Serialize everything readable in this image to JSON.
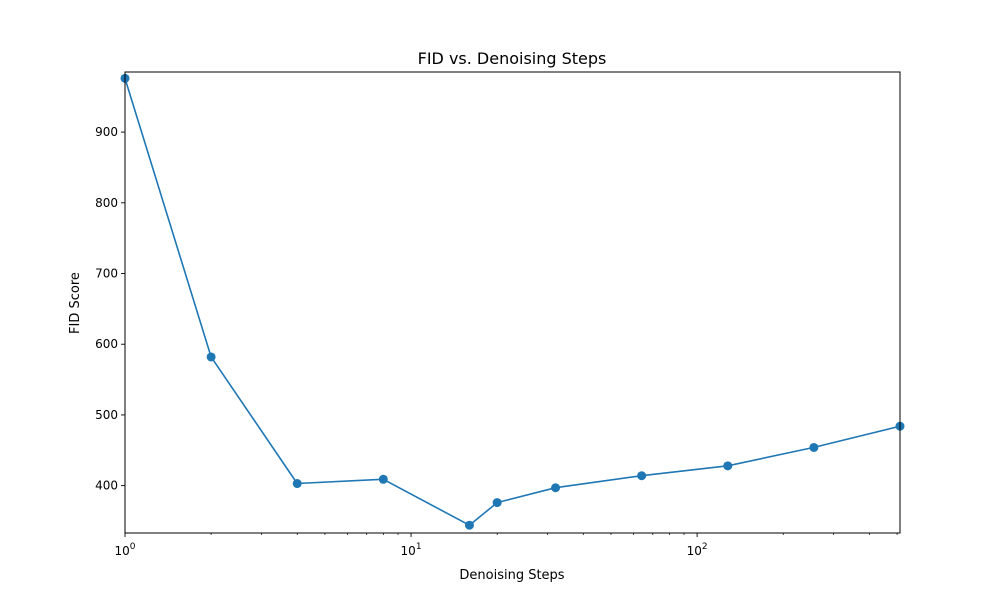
{
  "chart_data": {
    "type": "line",
    "title": "FID vs. Denoising Steps",
    "xlabel": "Denoising Steps",
    "ylabel": "FID Score",
    "xscale": "log",
    "xlim": [
      1,
      512
    ],
    "ylim": [
      333,
      985
    ],
    "grid": false,
    "legend": "none",
    "x_ticks": [
      {
        "value": 1,
        "base": "10",
        "exp": "0"
      },
      {
        "value": 10,
        "base": "10",
        "exp": "1"
      },
      {
        "value": 100,
        "base": "10",
        "exp": "2"
      }
    ],
    "y_ticks": [
      400,
      500,
      600,
      700,
      800,
      900
    ],
    "series": [
      {
        "color": "#1f77b4",
        "x": [
          1,
          2,
          4,
          8,
          16,
          20,
          32,
          64,
          128,
          256,
          512
        ],
        "values": [
          976,
          582,
          403,
          409,
          344,
          376,
          397,
          414,
          428,
          454,
          484
        ]
      }
    ]
  }
}
